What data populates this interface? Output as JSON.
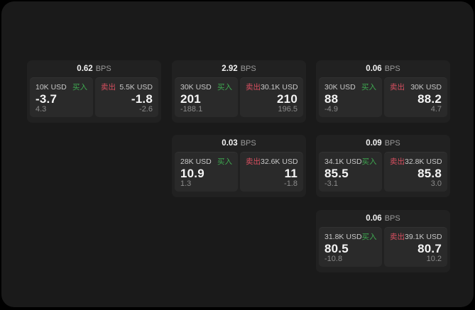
{
  "theme": {
    "background": "#000000",
    "surface_bg": "#1a1a1a",
    "card_bg": "#212121",
    "panel_bg": "#2a2a2a",
    "buy_color": "#3ea850",
    "sell_color": "#d84f60",
    "primary_text": "#f5f5f5",
    "muted_text": "#8c8c8c"
  },
  "cards": [
    {
      "bps_value": "0.62",
      "bps_unit": "BPS",
      "buy": {
        "size": "10K USD",
        "side_label": "买入",
        "price": "-3.7",
        "change": "4.3"
      },
      "sell": {
        "side_label": "卖出",
        "size": "5.5K USD",
        "price": "-1.8",
        "change": "-2.6"
      }
    },
    {
      "bps_value": "2.92",
      "bps_unit": "BPS",
      "buy": {
        "size": "30K USD",
        "side_label": "买入",
        "price": "201",
        "change": "-188.1"
      },
      "sell": {
        "side_label": "卖出",
        "size": "30.1K USD",
        "price": "210",
        "change": "196.5"
      }
    },
    {
      "bps_value": "0.06",
      "bps_unit": "BPS",
      "buy": {
        "size": "30K USD",
        "side_label": "买入",
        "price": "88",
        "change": "-4.9"
      },
      "sell": {
        "side_label": "卖出",
        "size": "30K USD",
        "price": "88.2",
        "change": "4.7"
      }
    },
    {
      "bps_value": "0.03",
      "bps_unit": "BPS",
      "buy": {
        "size": "28K USD",
        "side_label": "买入",
        "price": "10.9",
        "change": "1.3"
      },
      "sell": {
        "side_label": "卖出",
        "size": "32.6K USD",
        "price": "11",
        "change": "-1.8"
      }
    },
    {
      "bps_value": "0.09",
      "bps_unit": "BPS",
      "buy": {
        "size": "34.1K USD",
        "side_label": "买入",
        "price": "85.5",
        "change": "-3.1"
      },
      "sell": {
        "side_label": "卖出",
        "size": "32.8K USD",
        "price": "85.8",
        "change": "3.0"
      }
    },
    {
      "bps_value": "0.06",
      "bps_unit": "BPS",
      "buy": {
        "size": "31.8K USD",
        "side_label": "买入",
        "price": "80.5",
        "change": "-10.8"
      },
      "sell": {
        "side_label": "卖出",
        "size": "39.1K USD",
        "price": "80.7",
        "change": "10.2"
      }
    }
  ]
}
